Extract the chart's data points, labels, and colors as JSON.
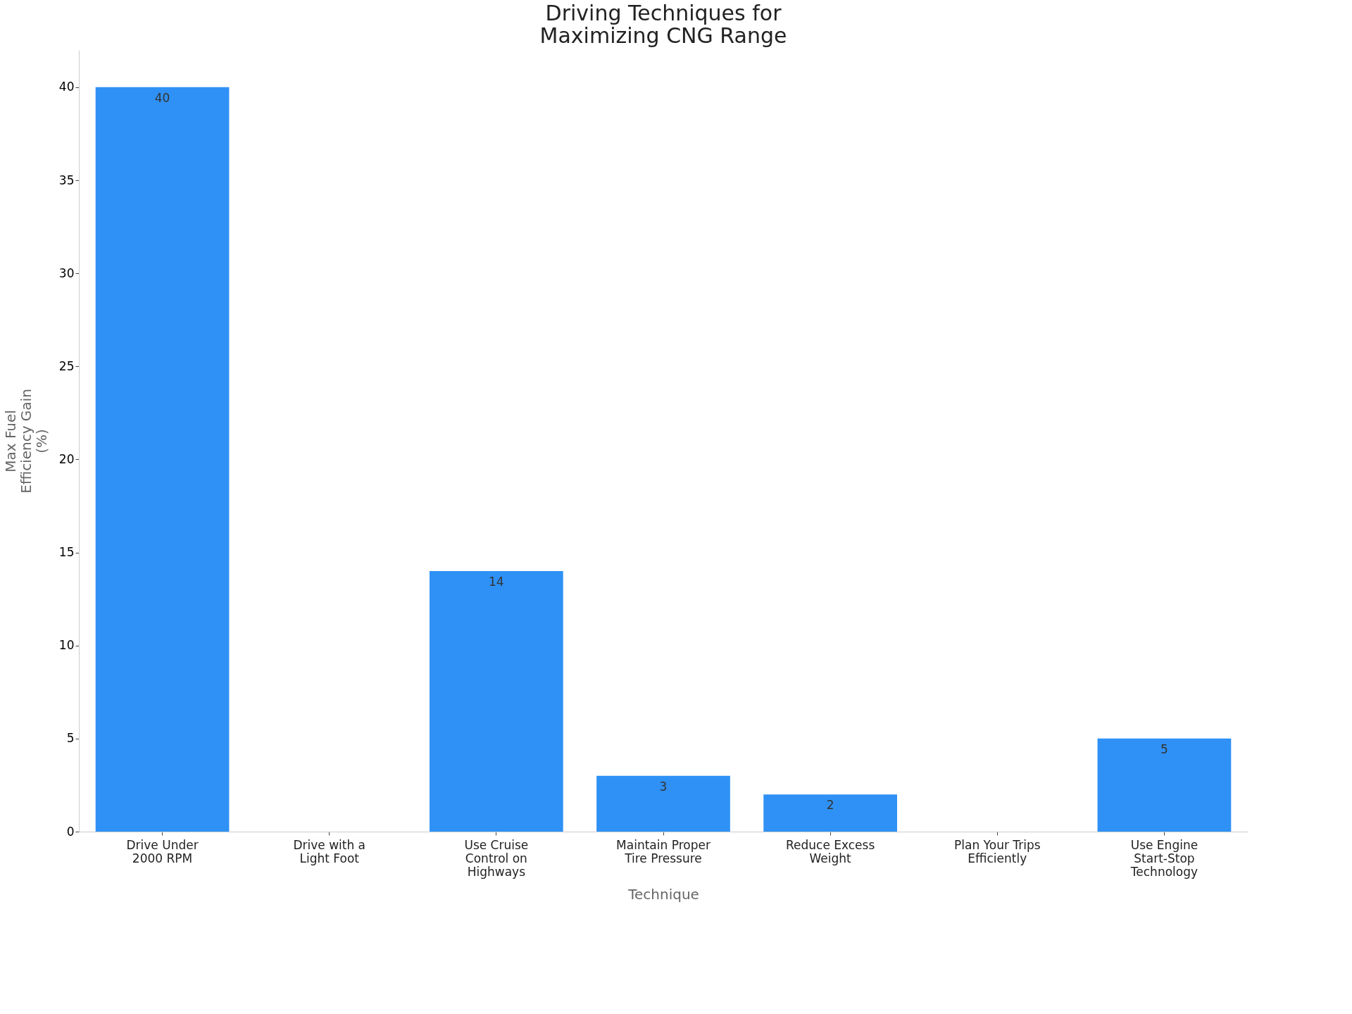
{
  "chart_data": {
    "type": "bar",
    "title": "Driving Techniques for Maximizing CNG Range",
    "xlabel": "Technique",
    "ylabel": "Max Fuel Efficiency Gain (%)",
    "categories": [
      "Drive Under 2000 RPM",
      "Drive with a Light Foot",
      "Use Cruise Control on Highways",
      "Maintain Proper Tire Pressure",
      "Reduce Excess Weight",
      "Plan Your Trips Efficiently",
      "Use Engine Start-Stop Technology"
    ],
    "values": [
      40,
      null,
      14,
      3,
      2,
      null,
      5
    ],
    "color": "#2f91f5",
    "ylim": [
      0,
      42
    ],
    "yticks": [
      0,
      5,
      10,
      15,
      20,
      25,
      30,
      35,
      40
    ],
    "data_labels": true,
    "grid": false
  }
}
